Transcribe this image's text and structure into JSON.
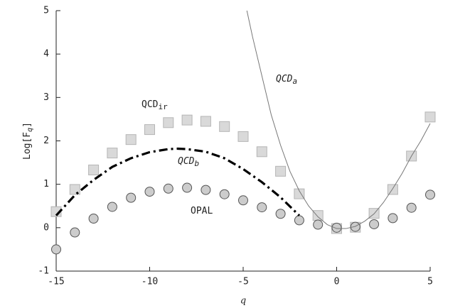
{
  "chart_data": {
    "type": "scatter",
    "x_label": "q",
    "y_label": {
      "text": "Log[F",
      "sub": "q",
      "end": "]"
    },
    "xlim": [
      -15,
      5
    ],
    "ylim": [
      -1,
      5
    ],
    "xticks": [
      -15,
      -10,
      -5,
      0,
      5
    ],
    "yticks": [
      -1,
      0,
      1,
      2,
      3,
      4,
      5
    ],
    "series": [
      {
        "label": "QCD",
        "label_sub": "ir",
        "kind": "square",
        "color": "#d9d9d9",
        "x": [
          -15,
          -14,
          -13,
          -12,
          -11,
          -10,
          -9,
          -8,
          -7,
          -6,
          -5,
          -4,
          -3,
          -2,
          -1,
          0,
          1,
          2,
          3,
          4,
          5
        ],
        "values": [
          0.37,
          0.88,
          1.33,
          1.72,
          2.03,
          2.26,
          2.42,
          2.48,
          2.45,
          2.33,
          2.1,
          1.75,
          1.3,
          0.78,
          0.28,
          -0.02,
          0.01,
          0.33,
          0.88,
          1.65,
          2.55
        ]
      },
      {
        "label": "OPAL",
        "kind": "circle",
        "color": "#cccccc",
        "x": [
          -15,
          -14,
          -13,
          -12,
          -11,
          -10,
          -9,
          -8,
          -7,
          -6,
          -5,
          -4,
          -3,
          -2,
          -1,
          0,
          1,
          2,
          3,
          4,
          5
        ],
        "values": [
          -0.5,
          -0.11,
          0.21,
          0.48,
          0.69,
          0.83,
          0.9,
          0.92,
          0.87,
          0.77,
          0.63,
          0.47,
          0.32,
          0.17,
          0.07,
          0.0,
          0.02,
          0.08,
          0.22,
          0.46,
          0.76
        ]
      },
      {
        "label": "QCD",
        "label_sub": "b",
        "kind": "dashdot",
        "color": "#000000",
        "x": [
          -15,
          -14,
          -13,
          -12,
          -11,
          -10,
          -9,
          -8.5,
          -8,
          -7,
          -6,
          -5,
          -4,
          -3,
          -2
        ],
        "values": [
          0.28,
          0.75,
          1.1,
          1.4,
          1.6,
          1.74,
          1.81,
          1.82,
          1.81,
          1.75,
          1.6,
          1.35,
          1.05,
          0.7,
          0.28
        ]
      },
      {
        "label": "QCD",
        "label_sub": "a",
        "kind": "line",
        "color": "#777777",
        "x": [
          -4.8,
          -4.5,
          -4,
          -3.5,
          -3,
          -2.5,
          -2,
          -1.5,
          -1,
          -0.5,
          0,
          0.5,
          1,
          1.5,
          2,
          2.5,
          3,
          3.5,
          4,
          4.5,
          5
        ],
        "values": [
          5,
          4.4,
          3.5,
          2.6,
          1.9,
          1.3,
          0.85,
          0.5,
          0.25,
          0.07,
          -0.02,
          -0.02,
          0.03,
          0.15,
          0.32,
          0.58,
          0.9,
          1.25,
          1.65,
          2.0,
          2.4
        ]
      }
    ]
  }
}
